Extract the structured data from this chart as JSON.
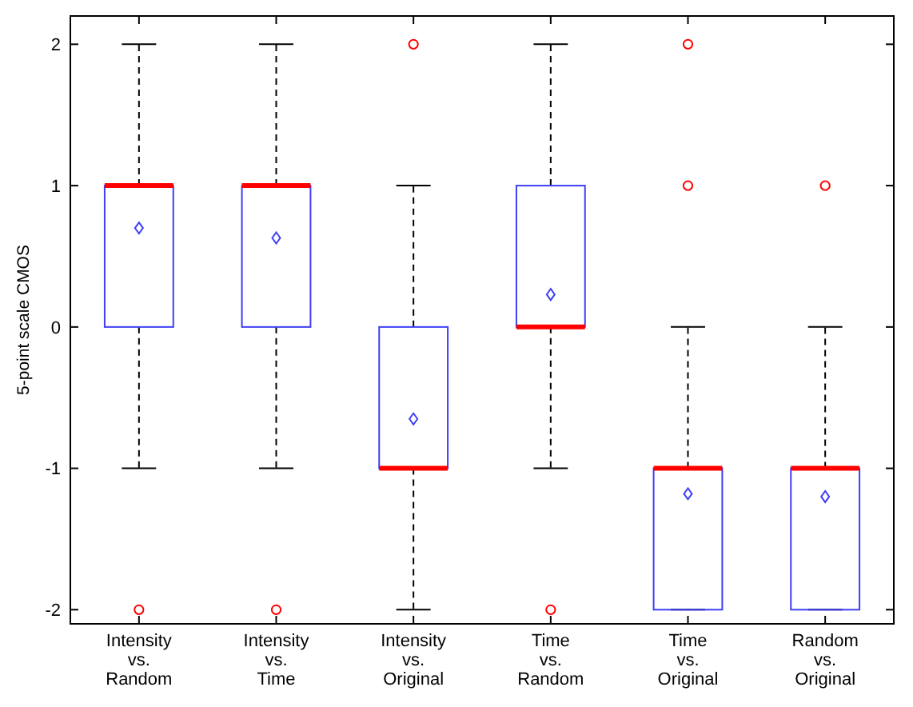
{
  "chart_data": {
    "type": "box",
    "ylabel": "5-point scale CMOS",
    "categories": [
      "Intensity\nvs.\nRandom",
      "Intensity\nvs.\nTime",
      "Intensity\nvs.\nOriginal",
      "Time\nvs.\nRandom",
      "Time\nvs.\nOriginal",
      "Random\nvs.\nOriginal"
    ],
    "ylim": [
      -2.1,
      2.2
    ],
    "yticks": [
      -2,
      -1,
      0,
      1,
      2
    ],
    "series": [
      {
        "color": "#3f3ff5",
        "boxes": [
          {
            "low": -1,
            "q1": 0,
            "median": 1,
            "q3": 1,
            "high": 2,
            "mean": 0.7,
            "outliers": [
              -2
            ]
          },
          {
            "low": -1,
            "q1": 0,
            "median": 1,
            "q3": 1,
            "high": 2,
            "mean": 0.63,
            "outliers": [
              -2
            ]
          },
          {
            "low": -2,
            "q1": -1,
            "median": -1,
            "q3": 0,
            "high": 1,
            "mean": -0.65,
            "outliers": [
              2
            ]
          },
          {
            "low": -1,
            "q1": 0,
            "median": 0,
            "q3": 1,
            "high": 2,
            "mean": 0.23,
            "outliers": [
              -2
            ]
          },
          {
            "low": -2,
            "q1": -2,
            "median": -1,
            "q3": -1,
            "high": 0,
            "mean": -1.18,
            "outliers": [
              1,
              2
            ]
          },
          {
            "low": -2,
            "q1": -2,
            "median": -1,
            "q3": -1,
            "high": 0,
            "mean": -1.2,
            "outliers": [
              1
            ]
          }
        ]
      }
    ]
  }
}
